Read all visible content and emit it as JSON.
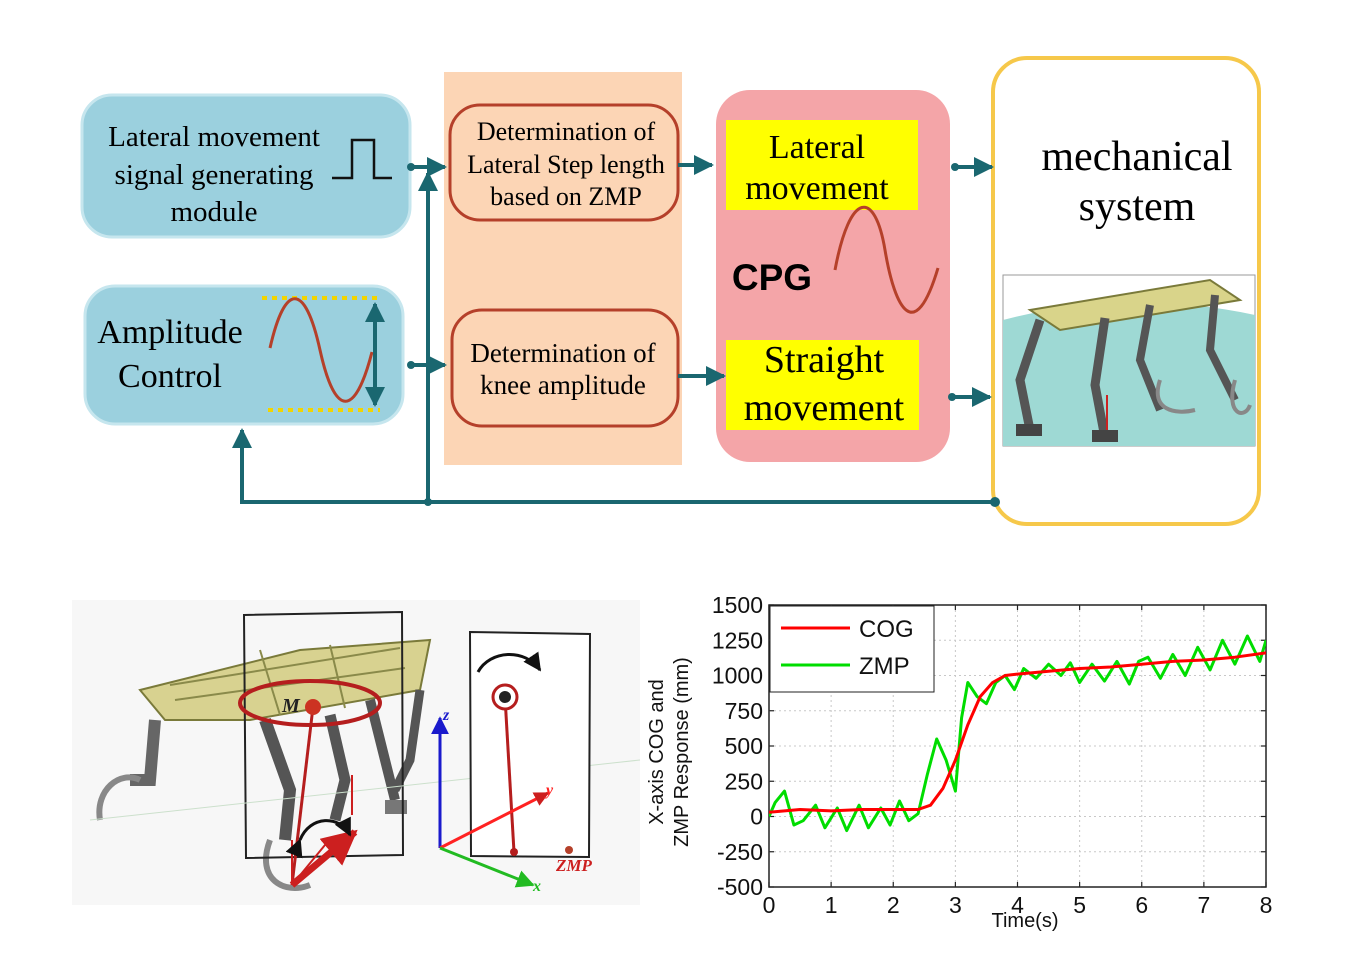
{
  "diagram": {
    "lateral_module": {
      "line1": "Lateral movement",
      "line2": "signal generating",
      "line3": "module"
    },
    "amplitude_control": {
      "line1": "Amplitude",
      "line2": "Control"
    },
    "lateral_step": {
      "line1": "Determination of",
      "line2": "Lateral Step length",
      "line3": "based on ZMP"
    },
    "knee_amplitude": {
      "line1": "Determination of",
      "line2": "knee amplitude"
    },
    "cpg": {
      "label": "CPG",
      "lateral": {
        "line1": "Lateral",
        "line2": "movement"
      },
      "straight": {
        "line1": "Straight",
        "line2": "movement"
      }
    },
    "mechanical": {
      "line1": "mechanical",
      "line2": "system"
    }
  },
  "robot_figure": {
    "label_m": "M",
    "axis_z": "z",
    "axis_y": "y",
    "axis_x": "x",
    "zmp": "ZMP"
  },
  "chart_data": {
    "type": "line",
    "xlabel": "Time(s)",
    "ylabel_line1": "X-axis COG and",
    "ylabel_line2": "ZMP Response (mm)",
    "xlim": [
      0,
      8
    ],
    "ylim": [
      -500,
      1500
    ],
    "x_ticks": [
      "0",
      "1",
      "2",
      "3",
      "4",
      "5",
      "6",
      "7",
      "8"
    ],
    "y_ticks": [
      "1500",
      "1250",
      "1000",
      "750",
      "500",
      "250",
      "0",
      "-250",
      "-500"
    ],
    "grid": true,
    "legend_position": "top-left",
    "series": [
      {
        "name": "COG",
        "color": "#ff0000",
        "x": [
          0,
          0.5,
          1.0,
          1.5,
          2.0,
          2.4,
          2.6,
          2.8,
          3.0,
          3.2,
          3.4,
          3.6,
          3.8,
          4.0,
          4.5,
          5.0,
          5.5,
          6.0,
          6.5,
          7.0,
          7.5,
          8.0
        ],
        "y": [
          30,
          50,
          40,
          50,
          50,
          50,
          80,
          200,
          400,
          650,
          850,
          950,
          1000,
          1010,
          1030,
          1050,
          1060,
          1080,
          1100,
          1110,
          1130,
          1160
        ]
      },
      {
        "name": "ZMP",
        "color": "#00dd00",
        "x": [
          0,
          0.1,
          0.25,
          0.4,
          0.55,
          0.75,
          0.9,
          1.1,
          1.25,
          1.45,
          1.6,
          1.8,
          1.95,
          2.1,
          2.25,
          2.4,
          2.55,
          2.7,
          2.85,
          3.0,
          3.1,
          3.2,
          3.35,
          3.5,
          3.65,
          3.8,
          3.95,
          4.1,
          4.3,
          4.5,
          4.7,
          4.85,
          5.0,
          5.2,
          5.4,
          5.6,
          5.8,
          5.95,
          6.1,
          6.3,
          6.5,
          6.7,
          6.9,
          7.1,
          7.3,
          7.5,
          7.7,
          7.9,
          8.0
        ],
        "y": [
          0,
          100,
          180,
          -60,
          -30,
          80,
          -80,
          60,
          -100,
          80,
          -80,
          60,
          -60,
          110,
          -30,
          20,
          300,
          550,
          400,
          180,
          700,
          950,
          850,
          800,
          950,
          1000,
          900,
          1050,
          980,
          1080,
          1000,
          1090,
          950,
          1080,
          960,
          1100,
          940,
          1100,
          1130,
          980,
          1150,
          1000,
          1200,
          1040,
          1250,
          1080,
          1280,
          1100,
          1250
        ]
      }
    ]
  }
}
